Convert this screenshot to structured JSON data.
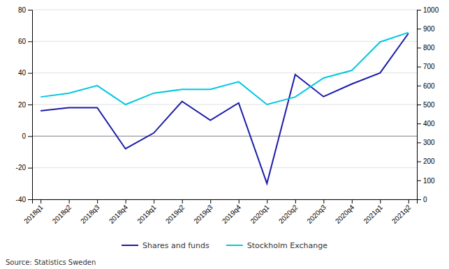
{
  "chart_data": {
    "type": "line",
    "categories": [
      "2018q1",
      "2018q2",
      "2018q3",
      "2018q4",
      "2019q1",
      "2019q2",
      "2019q3",
      "2019q4",
      "2020q1",
      "2020q2",
      "2020q3",
      "2020q4",
      "2021q1",
      "2021q2"
    ],
    "series": [
      {
        "name": "Shares and funds",
        "color": "#1a1aaa",
        "values": [
          16,
          18,
          18,
          -8,
          2,
          22,
          10,
          21,
          -30,
          39,
          25,
          33,
          40,
          65
        ]
      },
      {
        "name": "Stockholm Exchange",
        "color": "#00c8e0",
        "axis": "y2",
        "values": [
          540,
          560,
          600,
          500,
          560,
          580,
          580,
          620,
          500,
          540,
          640,
          680,
          830,
          880
        ]
      }
    ],
    "ylim": [
      -40,
      80
    ],
    "yticks": [
      -40,
      -20,
      0,
      20,
      40,
      60,
      80
    ],
    "y2lim": [
      0,
      1000
    ],
    "y2ticks": [
      0,
      100,
      200,
      300,
      400,
      500,
      600,
      700,
      800,
      900,
      1000
    ],
    "grid": true,
    "legend": "bottom",
    "source": "Source: Statistics Sweden"
  }
}
